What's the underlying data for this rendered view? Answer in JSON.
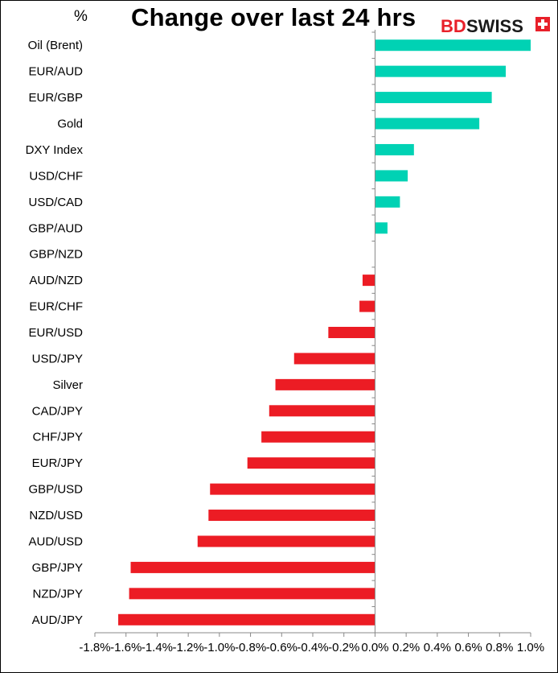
{
  "chart_data": {
    "type": "bar",
    "orientation": "horizontal",
    "title": "Change over last 24 hrs",
    "unit_label": "%",
    "xlim": [
      -1.8,
      1.0
    ],
    "x_ticks": [
      -1.8,
      -1.6,
      -1.4,
      -1.2,
      -1.0,
      -0.8,
      -0.6,
      -0.4,
      -0.2,
      0.0,
      0.2,
      0.4,
      0.6,
      0.8,
      1.0
    ],
    "x_tick_labels": [
      "-1.8%",
      "-1.6%",
      "-1.4%",
      "-1.2%",
      "-1.0%",
      "-0.8%",
      "-0.6%",
      "-0.4%",
      "-0.2%",
      "0.0%",
      "0.2%",
      "0.4%",
      "0.6%",
      "0.8%",
      "1.0%"
    ],
    "categories": [
      "Oil (Brent)",
      "EUR/AUD",
      "EUR/GBP",
      "Gold",
      "DXY Index",
      "USD/CHF",
      "USD/CAD",
      "GBP/AUD",
      "GBP/NZD",
      "AUD/NZD",
      "EUR/CHF",
      "EUR/USD",
      "USD/JPY",
      "Silver",
      "CAD/JPY",
      "CHF/JPY",
      "EUR/JPY",
      "GBP/USD",
      "NZD/USD",
      "AUD/USD",
      "GBP/JPY",
      "NZD/JPY",
      "AUD/JPY"
    ],
    "values": [
      1.0,
      0.84,
      0.75,
      0.67,
      0.25,
      0.21,
      0.16,
      0.08,
      0.0,
      -0.08,
      -0.1,
      -0.3,
      -0.52,
      -0.64,
      -0.68,
      -0.73,
      -0.82,
      -1.06,
      -1.07,
      -1.14,
      -1.57,
      -1.58,
      -1.65
    ],
    "colors": {
      "positive": "#00d2b4",
      "negative": "#ec1c24"
    },
    "grid": false
  },
  "brand": {
    "part1": "BD",
    "part2": "SWISS",
    "accent": "#e8202a"
  }
}
